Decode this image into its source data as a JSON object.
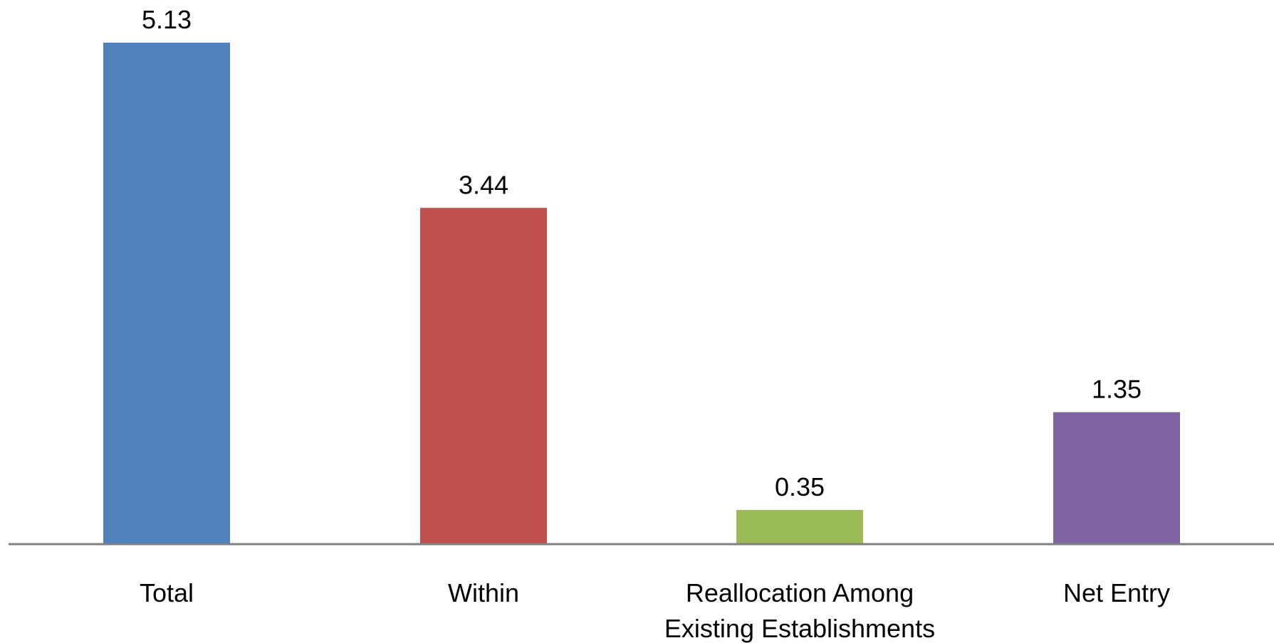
{
  "chart_data": {
    "type": "bar",
    "categories": [
      [
        "Total"
      ],
      [
        "Within"
      ],
      [
        "Reallocation Among",
        "Existing Establishments"
      ],
      [
        "Net Entry"
      ]
    ],
    "values": [
      5.13,
      3.44,
      0.35,
      1.35
    ],
    "value_labels": [
      "5.13",
      "3.44",
      "0.35",
      "1.35"
    ],
    "colors": [
      "#4F81BD",
      "#C0504D",
      "#9BBB59",
      "#8064A2"
    ],
    "axis_color": "#808080",
    "ylim": [
      0,
      5.13
    ],
    "grid": false,
    "legend": "none"
  }
}
